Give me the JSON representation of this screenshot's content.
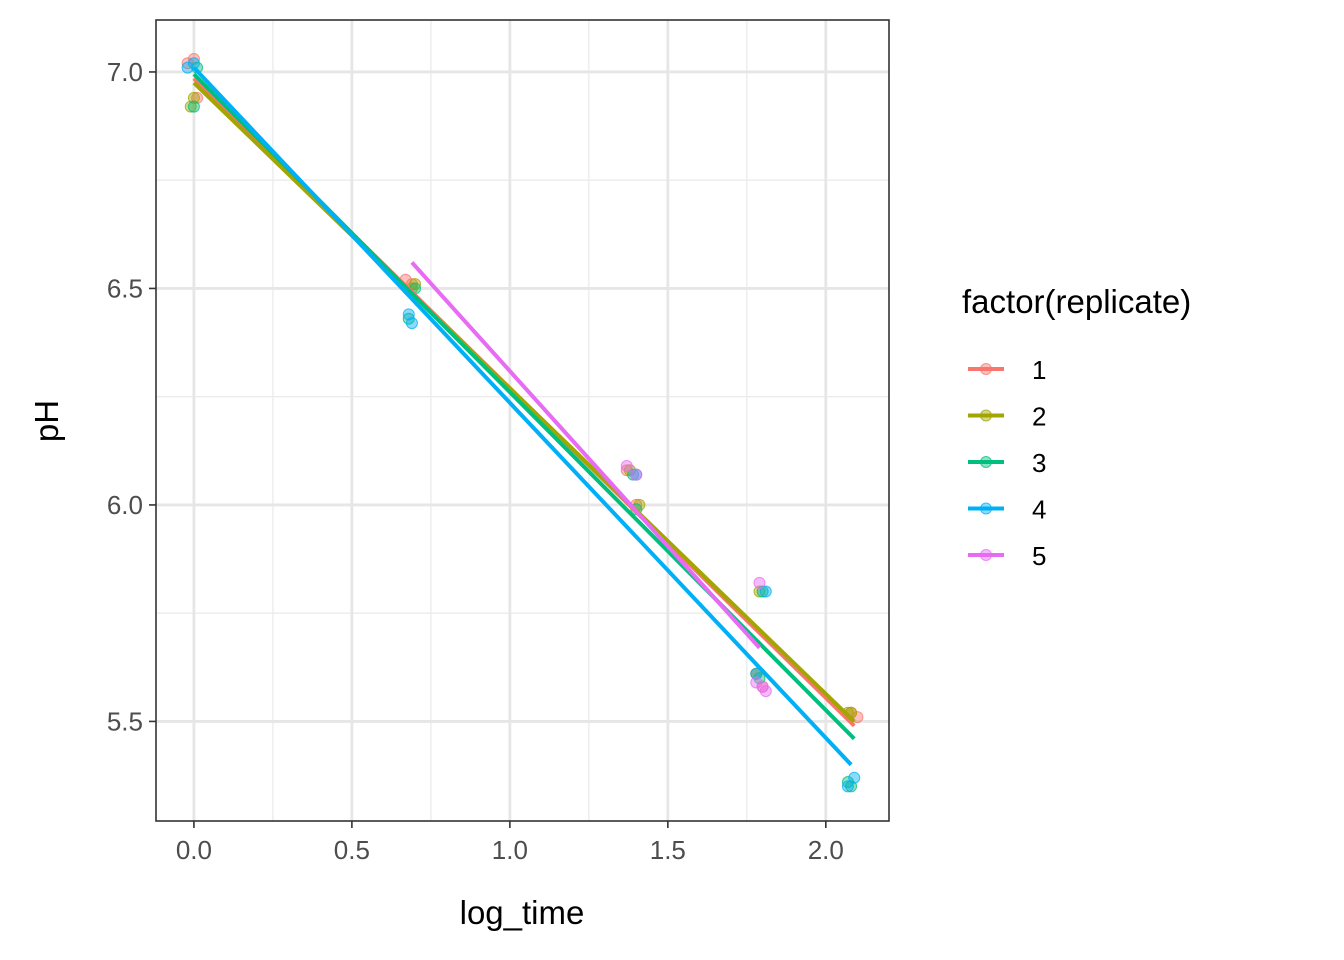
{
  "chart_data": {
    "type": "scatter",
    "xlabel": "log_time",
    "ylabel": "pH",
    "xlim": [
      -0.12,
      2.2
    ],
    "ylim": [
      5.27,
      7.12
    ],
    "x_ticks": [
      0.0,
      0.5,
      1.0,
      1.5,
      2.0
    ],
    "x_tick_labels": [
      "0.0",
      "0.5",
      "1.0",
      "1.5",
      "2.0"
    ],
    "y_ticks": [
      5.5,
      6.0,
      6.5,
      7.0
    ],
    "y_tick_labels": [
      "5.5",
      "6.0",
      "6.5",
      "7.0"
    ],
    "grid": true,
    "legend": {
      "title": "factor(replicate)",
      "placement": "right"
    },
    "series": [
      {
        "name": "1",
        "color": "#F8766D",
        "points": [
          [
            -0.02,
            7.02
          ],
          [
            0.0,
            7.03
          ],
          [
            0.01,
            6.94
          ],
          [
            0.67,
            6.52
          ],
          [
            0.69,
            6.51
          ],
          [
            1.37,
            6.08
          ],
          [
            1.4,
            6.0
          ],
          [
            1.78,
            5.61
          ],
          [
            1.8,
            5.58
          ],
          [
            2.08,
            5.52
          ],
          [
            2.1,
            5.51
          ]
        ],
        "fit": [
          [
            0.0,
            6.985
          ],
          [
            2.09,
            5.49
          ]
        ]
      },
      {
        "name": "2",
        "color": "#A3A500",
        "points": [
          [
            -0.01,
            6.92
          ],
          [
            0.0,
            6.94
          ],
          [
            0.69,
            6.5
          ],
          [
            0.7,
            6.51
          ],
          [
            1.38,
            6.08
          ],
          [
            1.41,
            6.0
          ],
          [
            1.78,
            5.61
          ],
          [
            1.79,
            5.8
          ],
          [
            2.07,
            5.52
          ],
          [
            2.08,
            5.52
          ]
        ],
        "fit": [
          [
            0.0,
            6.975
          ],
          [
            2.09,
            5.5
          ]
        ]
      },
      {
        "name": "3",
        "color": "#00BF7D",
        "points": [
          [
            0.0,
            6.92
          ],
          [
            0.01,
            7.01
          ],
          [
            0.68,
            6.43
          ],
          [
            0.7,
            6.5
          ],
          [
            1.39,
            6.07
          ],
          [
            1.4,
            5.99
          ],
          [
            1.79,
            5.6
          ],
          [
            1.8,
            5.8
          ],
          [
            2.07,
            5.36
          ],
          [
            2.08,
            5.35
          ]
        ],
        "fit": [
          [
            0.0,
            6.995
          ],
          [
            2.09,
            5.46
          ]
        ]
      },
      {
        "name": "4",
        "color": "#00B0F6",
        "points": [
          [
            -0.02,
            7.01
          ],
          [
            0.0,
            7.02
          ],
          [
            0.68,
            6.44
          ],
          [
            0.69,
            6.42
          ],
          [
            1.4,
            6.07
          ],
          [
            1.78,
            5.61
          ],
          [
            1.81,
            5.8
          ],
          [
            2.07,
            5.35
          ],
          [
            2.09,
            5.37
          ]
        ],
        "fit": [
          [
            0.0,
            7.01
          ],
          [
            2.08,
            5.4
          ]
        ]
      },
      {
        "name": "5",
        "color": "#E76BF3",
        "points": [
          [
            1.37,
            6.09
          ],
          [
            1.4,
            6.07
          ],
          [
            1.79,
            5.82
          ],
          [
            1.8,
            5.58
          ],
          [
            1.78,
            5.59
          ],
          [
            1.81,
            5.57
          ]
        ],
        "fit": [
          [
            0.69,
            6.56
          ],
          [
            1.79,
            5.67
          ]
        ]
      }
    ]
  }
}
